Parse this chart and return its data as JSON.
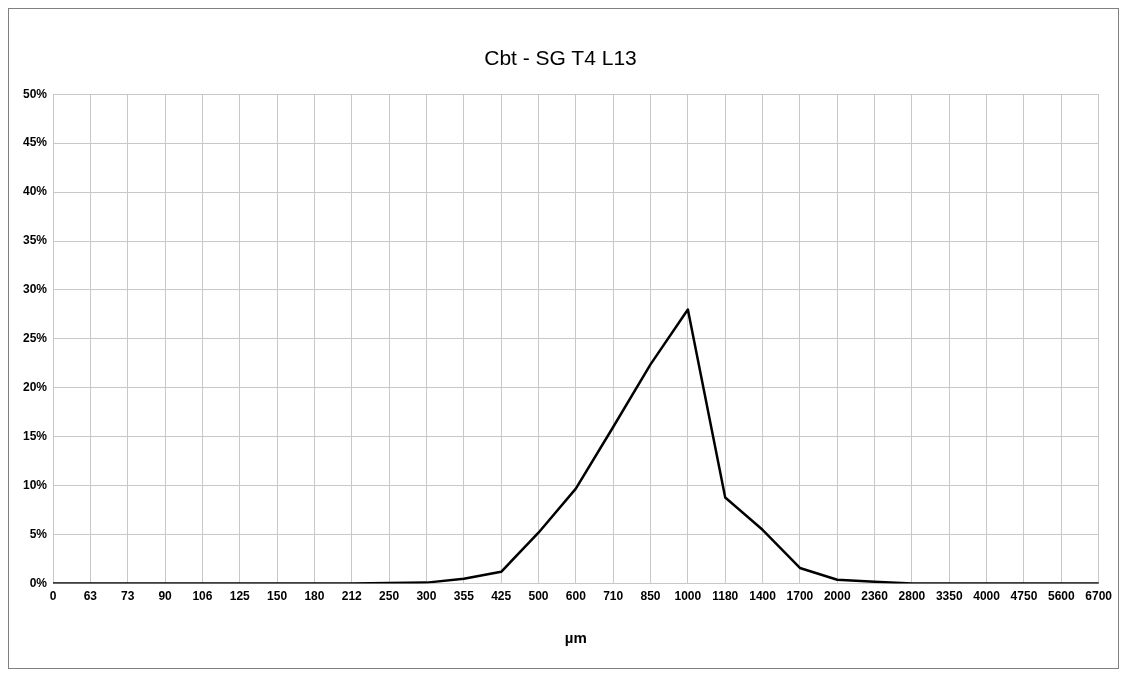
{
  "chart_data": {
    "type": "line",
    "title": "Cbt - SG T4 L13",
    "xlabel": "µm",
    "categories": [
      "0",
      "63",
      "73",
      "90",
      "106",
      "125",
      "150",
      "180",
      "212",
      "250",
      "300",
      "355",
      "425",
      "500",
      "600",
      "710",
      "850",
      "1000",
      "1180",
      "1400",
      "1700",
      "2000",
      "2360",
      "2800",
      "3350",
      "4000",
      "4750",
      "5600",
      "6700"
    ],
    "series": [
      {
        "color": "#000000",
        "values": [
          0,
          0,
          0,
          0,
          0,
          0,
          0,
          0,
          0,
          0.05,
          0.1,
          0.5,
          1.2,
          5.2,
          9.7,
          16,
          22.4,
          28,
          8.8,
          5.5,
          1.6,
          0.4,
          0.2,
          0,
          0,
          0,
          0,
          0,
          0
        ]
      }
    ],
    "ylim": [
      0,
      50
    ],
    "yticks": [
      {
        "value": 0,
        "label": "0%"
      },
      {
        "value": 5,
        "label": "5%"
      },
      {
        "value": 10,
        "label": "10%"
      },
      {
        "value": 15,
        "label": "15%"
      },
      {
        "value": 20,
        "label": "20%"
      },
      {
        "value": 25,
        "label": "25%"
      },
      {
        "value": 30,
        "label": "30%"
      },
      {
        "value": 35,
        "label": "35%"
      },
      {
        "value": 40,
        "label": "40%"
      },
      {
        "value": 45,
        "label": "45%"
      },
      {
        "value": 50,
        "label": "50%"
      }
    ],
    "grid": true,
    "legend": false,
    "marker": "none",
    "line_style": "solid"
  }
}
